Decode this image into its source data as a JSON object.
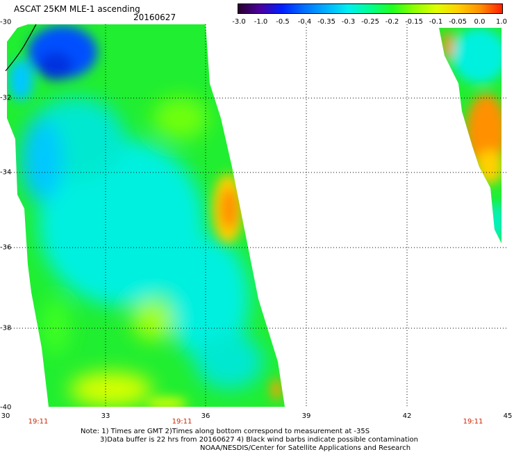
{
  "header": {
    "title": "ASCAT 25KM MLE-1 ascending",
    "date": "20160627"
  },
  "colorbar": {
    "labels": [
      "-3.0",
      "-1.0",
      "-0.5",
      "-0.4",
      "-0.35",
      "-0.3",
      "-0.25",
      "-0.2",
      "-0.15",
      "-0.1",
      "-0.05",
      "0.0",
      "1.0"
    ],
    "colors": [
      "#2a0030",
      "#4a00a0",
      "#0020ff",
      "#0070ff",
      "#00b0ff",
      "#00f0f0",
      "#00ff90",
      "#20ff20",
      "#90ff00",
      "#e0ff00",
      "#ffd000",
      "#ff9000",
      "#ff2000"
    ]
  },
  "map": {
    "lat_labels": [
      "-30",
      "-32",
      "-34",
      "-36",
      "-38",
      "-40"
    ],
    "lon_labels": [
      "30",
      "33",
      "36",
      "39",
      "42",
      "45"
    ],
    "time_labels": [
      "19:11",
      "19:11",
      "19:11"
    ]
  },
  "notes": {
    "line1": "Note: 1) Times are GMT 2)Times along bottom correspond to measurement at -35S",
    "line2": "3)Data buffer is 22 hrs from 20160627 4) Black wind barbs indicate possible contamination",
    "line3": "NOAA/NESDIS/Center for Satellite Applications and Research"
  }
}
